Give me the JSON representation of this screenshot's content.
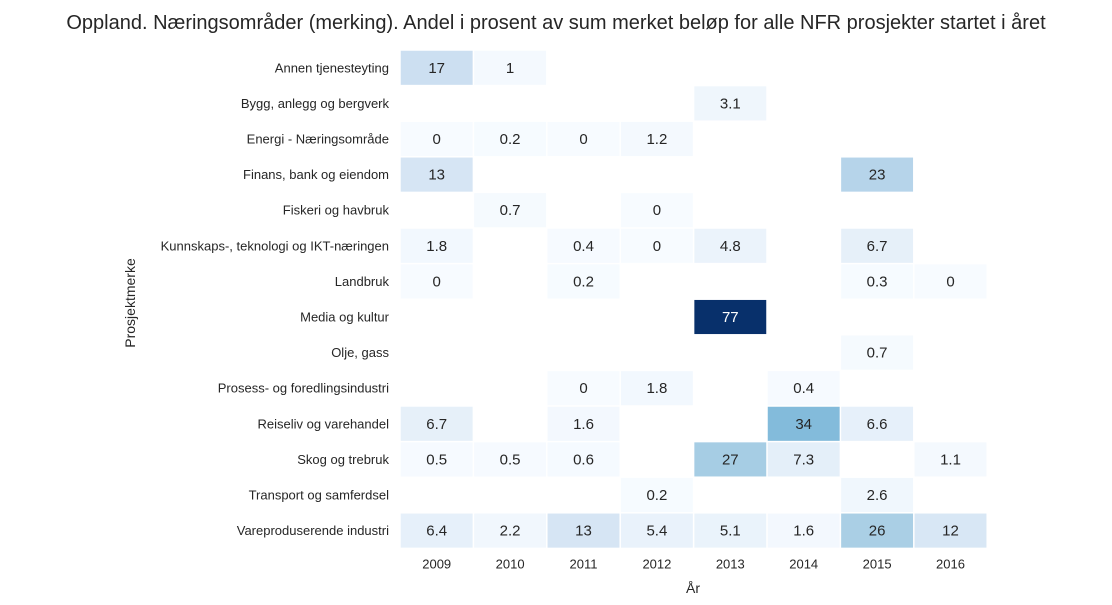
{
  "chart_data": {
    "type": "heatmap",
    "title": "Oppland. Næringsområder (merking). Andel i prosent av sum merket beløp for alle NFR prosjekter startet i året",
    "xlabel": "År",
    "ylabel": "Prosjektmerke",
    "columns": [
      "2009",
      "2010",
      "2011",
      "2012",
      "2013",
      "2014",
      "2015",
      "2016"
    ],
    "rows": [
      "Annen tjenesteyting",
      "Bygg, anlegg og bergverk",
      "Energi - Næringsområde",
      "Finans, bank og eiendom",
      "Fiskeri og havbruk",
      "Kunnskaps-, teknologi og IKT-næringen",
      "Landbruk",
      "Media og kultur",
      "Olje, gass",
      "Prosess- og foredlingsindustri",
      "Reiseliv og varehandel",
      "Skog og trebruk",
      "Transport og samferdsel",
      "Vareproduserende industri"
    ],
    "values": [
      [
        17,
        1,
        null,
        null,
        null,
        null,
        null,
        null
      ],
      [
        null,
        null,
        null,
        null,
        3.1,
        null,
        null,
        null
      ],
      [
        0,
        0.2,
        0,
        1.2,
        null,
        null,
        null,
        null
      ],
      [
        13,
        null,
        null,
        null,
        null,
        null,
        23,
        null
      ],
      [
        null,
        0.7,
        null,
        0,
        null,
        null,
        null,
        null
      ],
      [
        1.8,
        null,
        0.4,
        0,
        4.8,
        null,
        6.7,
        null
      ],
      [
        0,
        null,
        0.2,
        null,
        null,
        null,
        0.3,
        0
      ],
      [
        null,
        null,
        null,
        null,
        77,
        null,
        null,
        null
      ],
      [
        null,
        null,
        null,
        null,
        null,
        null,
        0.7,
        null
      ],
      [
        null,
        null,
        0,
        1.8,
        null,
        0.4,
        null,
        null
      ],
      [
        6.7,
        null,
        1.6,
        null,
        null,
        34,
        6.6,
        null
      ],
      [
        0.5,
        0.5,
        0.6,
        null,
        27,
        7.3,
        null,
        1.1
      ],
      [
        null,
        null,
        null,
        0.2,
        null,
        null,
        2.6,
        null
      ],
      [
        6.4,
        2.2,
        13,
        5.4,
        5.1,
        1.6,
        26,
        12
      ]
    ],
    "value_range": [
      0,
      77
    ],
    "colormap": "Blues",
    "colorbar": false,
    "grid": false,
    "colors": {
      "low": "#f7fbff",
      "high": "#08306b",
      "text_dark": "#262626",
      "text_light": "#ffffff",
      "background": "#ffffff"
    }
  }
}
